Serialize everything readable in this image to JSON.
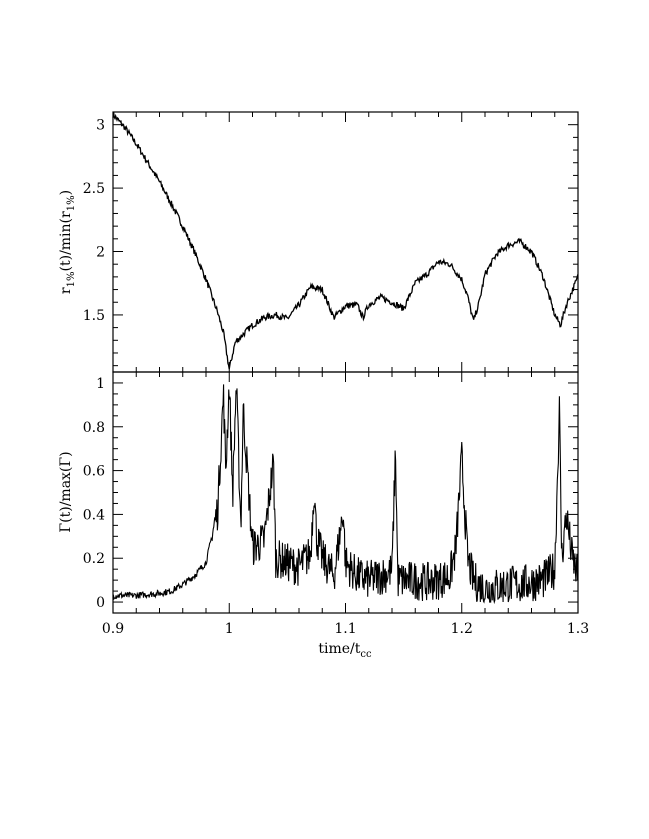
{
  "chart_data": [
    {
      "type": "line",
      "panel": "top",
      "ylabel_main": "r",
      "ylabel_sub": "1%",
      "ylabel_mid": "(t)/min(r",
      "ylabel_sub2": "1%",
      "ylabel_end": ")",
      "xlim": [
        0.9,
        1.3
      ],
      "ylim": [
        1.05,
        3.1
      ],
      "yticks": [
        1.5,
        2,
        2.5,
        3
      ],
      "ytick_labels": [
        "1.5",
        "2",
        "2.5",
        "3"
      ],
      "grid": false,
      "series": [
        {
          "x": [
            0.9,
            0.91,
            0.92,
            0.93,
            0.94,
            0.95,
            0.96,
            0.97,
            0.98,
            0.99,
            0.995,
            1.0,
            1.005,
            1.01,
            1.02,
            1.03,
            1.04,
            1.05,
            1.06,
            1.07,
            1.08,
            1.09,
            1.1,
            1.11,
            1.115,
            1.12,
            1.13,
            1.14,
            1.15,
            1.16,
            1.17,
            1.18,
            1.19,
            1.2,
            1.205,
            1.21,
            1.215,
            1.22,
            1.23,
            1.24,
            1.25,
            1.26,
            1.27,
            1.28,
            1.285,
            1.29,
            1.3
          ],
          "y": [
            3.08,
            2.98,
            2.85,
            2.7,
            2.55,
            2.38,
            2.2,
            2.0,
            1.78,
            1.52,
            1.36,
            1.07,
            1.28,
            1.33,
            1.42,
            1.48,
            1.5,
            1.47,
            1.58,
            1.72,
            1.7,
            1.48,
            1.57,
            1.58,
            1.48,
            1.58,
            1.64,
            1.6,
            1.55,
            1.75,
            1.82,
            1.92,
            1.9,
            1.78,
            1.65,
            1.45,
            1.6,
            1.82,
            1.98,
            2.05,
            2.08,
            2.0,
            1.8,
            1.5,
            1.42,
            1.58,
            1.8
          ]
        }
      ]
    },
    {
      "type": "line",
      "panel": "bottom",
      "ylabel": "Γ(t)/max(Γ)",
      "xlabel_main": "time/t",
      "xlabel_sub": "cc",
      "xlim": [
        0.9,
        1.3
      ],
      "ylim": [
        -0.05,
        1.05
      ],
      "xticks": [
        0.9,
        1.0,
        1.1,
        1.2,
        1.3
      ],
      "xtick_labels": [
        "0.9",
        "1",
        "1.1",
        "1.2",
        "1.3"
      ],
      "yticks": [
        0,
        0.2,
        0.4,
        0.6,
        0.8,
        1
      ],
      "ytick_labels": [
        "0",
        "0.2",
        "0.4",
        "0.6",
        "0.8",
        "1"
      ],
      "grid": false,
      "series": [
        {
          "x": [
            0.9,
            0.92,
            0.94,
            0.95,
            0.96,
            0.97,
            0.98,
            0.99,
            0.995,
            0.997,
            1.0,
            1.003,
            1.006,
            1.01,
            1.012,
            1.02,
            1.03,
            1.038,
            1.04,
            1.05,
            1.06,
            1.07,
            1.073,
            1.075,
            1.08,
            1.09,
            1.095,
            1.098,
            1.1,
            1.11,
            1.12,
            1.13,
            1.14,
            1.143,
            1.145,
            1.15,
            1.16,
            1.17,
            1.18,
            1.19,
            1.195,
            1.2,
            1.205,
            1.21,
            1.22,
            1.23,
            1.24,
            1.25,
            1.26,
            1.27,
            1.28,
            1.284,
            1.286,
            1.29,
            1.295,
            1.3
          ],
          "y": [
            0.03,
            0.03,
            0.04,
            0.05,
            0.08,
            0.12,
            0.18,
            0.42,
            0.95,
            0.6,
            1.0,
            0.5,
            1.0,
            0.35,
            0.88,
            0.25,
            0.28,
            0.64,
            0.2,
            0.18,
            0.16,
            0.22,
            0.53,
            0.3,
            0.2,
            0.12,
            0.3,
            0.42,
            0.18,
            0.12,
            0.1,
            0.12,
            0.14,
            0.7,
            0.1,
            0.1,
            0.1,
            0.09,
            0.1,
            0.12,
            0.25,
            0.66,
            0.2,
            0.1,
            0.06,
            0.07,
            0.08,
            0.08,
            0.09,
            0.1,
            0.15,
            0.88,
            0.2,
            0.4,
            0.2,
            0.12
          ]
        }
      ]
    }
  ]
}
